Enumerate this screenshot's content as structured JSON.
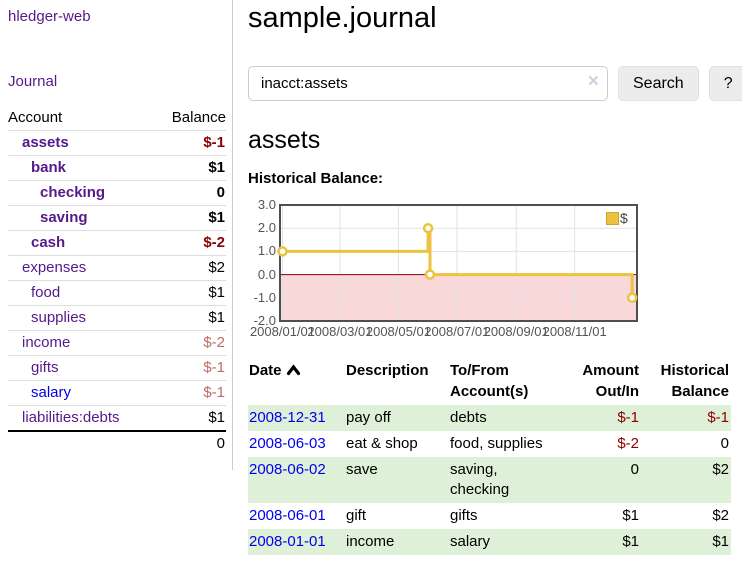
{
  "colors": {
    "link_purple": "#551A8B",
    "link_blue": "#0000EE",
    "negative_red": "#8B0000",
    "negative_muted_red": "#BF6B69",
    "row_stripe_green": "#DFF0D8",
    "chart_gold": "#EDC240",
    "chart_negative_fill": "#F8D8D8",
    "chart_zero_line": "#8B0000",
    "chart_border": "#4F4F4F",
    "chart_grid": "#E2E2E2"
  },
  "sidebar": {
    "app_title": "hledger-web",
    "journal_link": "Journal",
    "accounts": {
      "header_account": "Account",
      "header_balance": "Balance",
      "rows": [
        {
          "name": "assets",
          "balance": "$-1",
          "level": 1,
          "bold": true,
          "balance_style": "negative",
          "link_style": "purple"
        },
        {
          "name": "bank",
          "balance": "$1",
          "level": 2,
          "bold": true,
          "balance_style": "normal",
          "link_style": "purple"
        },
        {
          "name": "checking",
          "balance": "0",
          "level": 3,
          "bold": true,
          "balance_style": "normal",
          "link_style": "purple"
        },
        {
          "name": "saving",
          "balance": "$1",
          "level": 3,
          "bold": true,
          "balance_style": "normal",
          "link_style": "purple"
        },
        {
          "name": "cash",
          "balance": "$-2",
          "level": 2,
          "bold": true,
          "balance_style": "negative",
          "link_style": "purple"
        },
        {
          "name": "expenses",
          "balance": "$2",
          "level": 1,
          "bold": false,
          "balance_style": "normal",
          "link_style": "purple"
        },
        {
          "name": "food",
          "balance": "$1",
          "level": 2,
          "bold": false,
          "balance_style": "normal",
          "link_style": "purple"
        },
        {
          "name": "supplies",
          "balance": "$1",
          "level": 2,
          "bold": false,
          "balance_style": "normal",
          "link_style": "purple"
        },
        {
          "name": "income",
          "balance": "$-2",
          "level": 1,
          "bold": false,
          "balance_style": "negative-muted",
          "link_style": "purple"
        },
        {
          "name": "gifts",
          "balance": "$-1",
          "level": 2,
          "bold": false,
          "balance_style": "negative-muted",
          "link_style": "purple"
        },
        {
          "name": "salary",
          "balance": "$-1",
          "level": 2,
          "bold": false,
          "balance_style": "negative-muted",
          "link_style": "blue"
        },
        {
          "name": "liabilities:debts",
          "balance": "$1",
          "level": 1,
          "bold": false,
          "balance_style": "normal",
          "link_style": "purple"
        }
      ],
      "total": "0"
    }
  },
  "main": {
    "title": "sample.journal",
    "search": {
      "value": "inacct:assets",
      "clear_icon": "×",
      "search_button": "Search",
      "help_button": "?"
    },
    "account_heading": "assets",
    "chart_title": "Historical Balance:",
    "register": {
      "header_date": "Date",
      "header_description": "Description",
      "header_accounts": "To/From Account(s)",
      "header_amount": "Amount Out/In",
      "header_balance": "Historical Balance",
      "rows": [
        {
          "date": "2008-12-31",
          "description": "pay off",
          "accounts": "debts",
          "amount": "$-1",
          "amount_style": "negative",
          "balance": "$-1",
          "balance_style": "negative",
          "striped": true
        },
        {
          "date": "2008-06-03",
          "description": "eat & shop",
          "accounts": "food, supplies",
          "amount": "$-2",
          "amount_style": "negative",
          "balance": "0",
          "balance_style": "normal",
          "striped": false
        },
        {
          "date": "2008-06-02",
          "description": "save",
          "accounts": "saving, checking",
          "amount": "0",
          "amount_style": "normal",
          "balance": "$2",
          "balance_style": "normal",
          "striped": true
        },
        {
          "date": "2008-06-01",
          "description": "gift",
          "accounts": "gifts",
          "amount": "$1",
          "amount_style": "normal",
          "balance": "$2",
          "balance_style": "normal",
          "striped": false
        },
        {
          "date": "2008-01-01",
          "description": "income",
          "accounts": "salary",
          "amount": "$1",
          "amount_style": "normal",
          "balance": "$1",
          "balance_style": "normal",
          "striped": true
        }
      ]
    }
  },
  "chart_data": {
    "type": "line",
    "title": "Historical Balance:",
    "step": true,
    "series": [
      {
        "name": "$",
        "color": "#EDC240",
        "points": [
          [
            "2008-01-01",
            1
          ],
          [
            "2008-06-01",
            2
          ],
          [
            "2008-06-03",
            0
          ],
          [
            "2008-12-31",
            -1
          ]
        ]
      }
    ],
    "ylim": [
      -2,
      3
    ],
    "yticks": [
      "3.0",
      "2.0",
      "1.0",
      "0.0",
      "-1.0",
      "-2.0"
    ],
    "xticks": [
      "2008/01/01",
      "2008/03/01",
      "2008/05/01",
      "2008/07/01",
      "2008/09/01",
      "2008/11/01"
    ],
    "legend": {
      "position": "top-right",
      "label": "$"
    },
    "grid": true,
    "negative_region_shaded": true
  }
}
